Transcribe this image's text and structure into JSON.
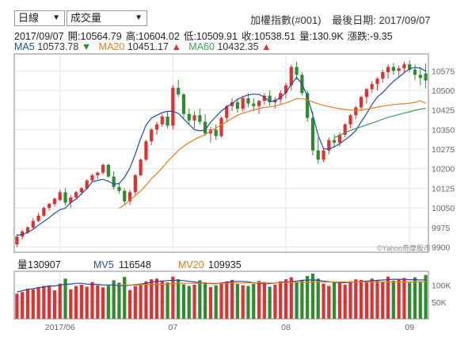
{
  "controls": {
    "period": {
      "value": "日線"
    },
    "indicator": {
      "value": "成交量"
    }
  },
  "header": {
    "title": "加權指數(#001)",
    "last_date_label": "最後日期:",
    "last_date": "2017/09/07"
  },
  "quote": {
    "date": "2017/09/07",
    "open_label": "開:",
    "open": "10564.79",
    "high_label": "高:",
    "high": "10604.02",
    "low_label": "低:",
    "low": "10509.91",
    "close_label": "收:",
    "close": "10538.51",
    "volume_label": "量:",
    "volume": "130.9K",
    "change_label": "漲跌:",
    "change": "-9.35"
  },
  "ma": {
    "ma5": {
      "label": "MA5",
      "value": "10573.78",
      "arrow": "▼",
      "color": "#1f4f9f",
      "arrow_color": "#2e8b2e"
    },
    "ma20": {
      "label": "MA20",
      "value": "10451.17",
      "arrow": "▲",
      "color": "#f07a18",
      "arrow_color": "#e03030"
    },
    "ma60": {
      "label": "MA60",
      "value": "10432.35",
      "arrow": "▲",
      "color": "#3aa055",
      "arrow_color": "#e03030"
    }
  },
  "watermark": "©Yahoo奇摩股市",
  "volume_panel": {
    "vol_label": "量",
    "vol_value": "130907",
    "mv5_label": "MV5",
    "mv5_value": "116548",
    "mv20_label": "MV20",
    "mv20_value": "109935",
    "mv5_color": "#1f4f9f",
    "mv20_color": "#f07a18"
  },
  "colors": {
    "up": "#e03030",
    "down": "#2e8b2e",
    "grid": "#e6e6e6",
    "axis_text": "#666666"
  },
  "chart_data": [
    {
      "type": "candlestick",
      "title": "加權指數(#001)",
      "y_ticks": [
        9900,
        9975,
        10050,
        10125,
        10200,
        10275,
        10350,
        10425,
        10500,
        10575
      ],
      "ylim": [
        9880,
        10640
      ],
      "x_labels": [
        {
          "label": "2017/06",
          "index": 8
        },
        {
          "label": "07",
          "index": 29
        },
        {
          "label": "08",
          "index": 50
        },
        {
          "label": "09",
          "index": 73
        }
      ],
      "series": [
        {
          "name": "MA5",
          "values": [
            9945,
            9948,
            9956,
            9968,
            9984,
            9998,
            10013,
            10029,
            10043,
            10049,
            10071,
            10083,
            10104,
            10124,
            10150,
            10155,
            10159,
            10152,
            10141,
            10143,
            10167,
            10203,
            10255,
            10316,
            10367,
            10394,
            10405,
            10415,
            10420,
            10420,
            10412,
            10391,
            10370,
            10350,
            10345,
            10348,
            10378,
            10400,
            10421,
            10437,
            10450,
            10466,
            10476,
            10483,
            10486,
            10485,
            10474,
            10457,
            10460,
            10474,
            10491,
            10524,
            10550,
            10525,
            10478,
            10405,
            10328,
            10277,
            10275,
            10284,
            10296,
            10311,
            10327,
            10346,
            10380,
            10411,
            10446,
            10475,
            10492,
            10514,
            10535,
            10551,
            10568,
            10583,
            10588,
            10586,
            10574
          ]
        },
        {
          "name": "MA20",
          "values": [
            null,
            null,
            null,
            null,
            null,
            null,
            null,
            null,
            null,
            null,
            null,
            null,
            null,
            null,
            null,
            null,
            null,
            null,
            null,
            10049,
            10062,
            10078,
            10097,
            10115,
            10137,
            10162,
            10181,
            10203,
            10228,
            10249,
            10270,
            10286,
            10300,
            10312,
            10322,
            10331,
            10344,
            10356,
            10368,
            10380,
            10393,
            10405,
            10413,
            10419,
            10425,
            10431,
            10435,
            10437,
            10440,
            10446,
            10452,
            10460,
            10469,
            10469,
            10464,
            10456,
            10449,
            10443,
            10438,
            10434,
            10430,
            10427,
            10425,
            10423,
            10425,
            10428,
            10432,
            10436,
            10440,
            10443,
            10446,
            10448,
            10449,
            10451,
            10455,
            10460,
            10451
          ]
        },
        {
          "name": "MA60",
          "values": [
            null,
            null,
            null,
            null,
            null,
            null,
            null,
            null,
            null,
            null,
            null,
            null,
            null,
            null,
            null,
            null,
            null,
            null,
            null,
            null,
            null,
            null,
            null,
            null,
            null,
            null,
            null,
            null,
            null,
            null,
            null,
            null,
            null,
            null,
            null,
            null,
            null,
            null,
            null,
            null,
            null,
            null,
            null,
            null,
            null,
            null,
            null,
            null,
            null,
            null,
            null,
            null,
            null,
            null,
            null,
            null,
            null,
            null,
            null,
            10318,
            10328,
            10338,
            10347,
            10354,
            10361,
            10368,
            10375,
            10382,
            10390,
            10397,
            10402,
            10408,
            10413,
            10418,
            10424,
            10428,
            10432
          ]
        }
      ],
      "candles": [
        [
          9910,
          9950,
          9900,
          9940
        ],
        [
          9940,
          9965,
          9930,
          9960
        ],
        [
          9955,
          9980,
          9950,
          9975
        ],
        [
          9975,
          10010,
          9968,
          10000
        ],
        [
          10000,
          10030,
          9995,
          10020
        ],
        [
          10020,
          10055,
          10015,
          10050
        ],
        [
          10050,
          10070,
          10040,
          10065
        ],
        [
          10065,
          10090,
          10055,
          10085
        ],
        [
          10080,
          10120,
          10075,
          10110
        ],
        [
          10110,
          10125,
          10060,
          10070
        ],
        [
          10070,
          10100,
          10050,
          10090
        ],
        [
          10090,
          10115,
          10085,
          10110
        ],
        [
          10110,
          10130,
          10100,
          10125
        ],
        [
          10125,
          10160,
          10120,
          10155
        ],
        [
          10155,
          10180,
          10150,
          10175
        ],
        [
          10175,
          10190,
          10160,
          10185
        ],
        [
          10185,
          10220,
          10178,
          10215
        ],
        [
          10215,
          10220,
          10165,
          10170
        ],
        [
          10170,
          10190,
          10120,
          10130
        ],
        [
          10130,
          10145,
          10105,
          10115
        ],
        [
          10115,
          10125,
          10060,
          10075
        ],
        [
          10075,
          10120,
          10060,
          10110
        ],
        [
          10110,
          10180,
          10100,
          10175
        ],
        [
          10175,
          10240,
          10170,
          10235
        ],
        [
          10235,
          10310,
          10230,
          10305
        ],
        [
          10305,
          10355,
          10290,
          10350
        ],
        [
          10350,
          10380,
          10330,
          10370
        ],
        [
          10370,
          10410,
          10360,
          10400
        ],
        [
          10400,
          10420,
          10355,
          10365
        ],
        [
          10365,
          10520,
          10350,
          10510
        ],
        [
          10510,
          10540,
          10475,
          10485
        ],
        [
          10485,
          10490,
          10395,
          10410
        ],
        [
          10410,
          10430,
          10370,
          10385
        ],
        [
          10385,
          10420,
          10355,
          10405
        ],
        [
          10405,
          10430,
          10370,
          10380
        ],
        [
          10380,
          10410,
          10325,
          10335
        ],
        [
          10335,
          10360,
          10300,
          10350
        ],
        [
          10350,
          10370,
          10310,
          10325
        ],
        [
          10325,
          10400,
          10320,
          10395
        ],
        [
          10395,
          10445,
          10380,
          10440
        ],
        [
          10440,
          10470,
          10420,
          10455
        ],
        [
          10455,
          10470,
          10415,
          10430
        ],
        [
          10430,
          10480,
          10420,
          10470
        ],
        [
          10470,
          10490,
          10435,
          10450
        ],
        [
          10450,
          10470,
          10420,
          10440
        ],
        [
          10440,
          10465,
          10410,
          10460
        ],
        [
          10460,
          10490,
          10445,
          10480
        ],
        [
          10480,
          10500,
          10440,
          10455
        ],
        [
          10455,
          10475,
          10430,
          10465
        ],
        [
          10465,
          10500,
          10450,
          10490
        ],
        [
          10490,
          10530,
          10470,
          10520
        ],
        [
          10520,
          10600,
          10500,
          10590
        ],
        [
          10590,
          10610,
          10540,
          10560
        ],
        [
          10560,
          10570,
          10480,
          10490
        ],
        [
          10490,
          10500,
          10380,
          10395
        ],
        [
          10395,
          10420,
          10250,
          10270
        ],
        [
          10270,
          10320,
          10220,
          10235
        ],
        [
          10235,
          10280,
          10225,
          10270
        ],
        [
          10270,
          10320,
          10255,
          10310
        ],
        [
          10310,
          10330,
          10280,
          10300
        ],
        [
          10300,
          10340,
          10285,
          10330
        ],
        [
          10330,
          10375,
          10320,
          10370
        ],
        [
          10370,
          10410,
          10355,
          10405
        ],
        [
          10405,
          10440,
          10390,
          10435
        ],
        [
          10435,
          10480,
          10420,
          10475
        ],
        [
          10475,
          10510,
          10450,
          10505
        ],
        [
          10505,
          10535,
          10490,
          10525
        ],
        [
          10525,
          10550,
          10500,
          10545
        ],
        [
          10545,
          10580,
          10530,
          10570
        ],
        [
          10570,
          10600,
          10545,
          10590
        ],
        [
          10590,
          10605,
          10560,
          10575
        ],
        [
          10575,
          10595,
          10550,
          10585
        ],
        [
          10585,
          10610,
          10565,
          10600
        ],
        [
          10600,
          10615,
          10570,
          10580
        ],
        [
          10580,
          10600,
          10540,
          10560
        ],
        [
          10560,
          10590,
          10520,
          10548
        ],
        [
          10564.79,
          10604.02,
          10509.91,
          10538.51
        ]
      ]
    },
    {
      "type": "bar",
      "title": "量",
      "y_ticks": [
        50000,
        100000
      ],
      "y_tick_labels": [
        "50K",
        "100K"
      ],
      "ylim": [
        0,
        142000
      ],
      "series": [
        {
          "name": "MV5",
          "values": [
            80000,
            84000,
            88000,
            90000,
            93000,
            95000,
            98000,
            98000,
            101000,
            103000,
            104000,
            106000,
            106000,
            104000,
            103000,
            103000,
            101000,
            101000,
            101000,
            99000,
            99000,
            100000,
            102000,
            104000,
            106000,
            109000,
            112000,
            113000,
            114000,
            115000,
            115000,
            114000,
            112000,
            110000,
            108000,
            106000,
            105000,
            105000,
            107000,
            109000,
            111000,
            112000,
            112000,
            110000,
            108000,
            106000,
            105000,
            105000,
            107000,
            109000,
            110000,
            111000,
            113000,
            115000,
            116000,
            116000,
            115000,
            113000,
            111000,
            109000,
            108000,
            108000,
            109000,
            110000,
            111000,
            113000,
            114000,
            115000,
            116000,
            117000,
            118000,
            118000,
            118000,
            117000,
            117000,
            116000,
            116548
          ]
        },
        {
          "name": "MV20",
          "values": [
            null,
            null,
            null,
            null,
            null,
            null,
            null,
            null,
            null,
            null,
            null,
            null,
            null,
            null,
            null,
            null,
            null,
            null,
            null,
            100000,
            101000,
            101000,
            101000,
            102000,
            102000,
            103000,
            103000,
            104000,
            104000,
            105000,
            106000,
            106000,
            106000,
            106000,
            106000,
            106000,
            106000,
            106000,
            106000,
            106000,
            107000,
            107000,
            107000,
            107000,
            108000,
            108000,
            107000,
            107000,
            107000,
            108000,
            108000,
            109000,
            109000,
            109000,
            109000,
            110000,
            110000,
            110000,
            110000,
            110000,
            110000,
            110000,
            110000,
            110000,
            110000,
            110000,
            110000,
            110000,
            110000,
            110000,
            110000,
            110000,
            110000,
            110000,
            110000,
            110000,
            109935
          ]
        }
      ],
      "volumes": [
        75000,
        80000,
        90000,
        88000,
        95000,
        98000,
        100000,
        85000,
        105000,
        120000,
        88000,
        98000,
        102000,
        96000,
        110000,
        100000,
        94000,
        99000,
        115000,
        108000,
        125000,
        86000,
        98000,
        104000,
        112000,
        118000,
        120000,
        114000,
        109000,
        126000,
        118000,
        103000,
        98000,
        102000,
        115000,
        109000,
        95000,
        100000,
        108000,
        112000,
        116000,
        104000,
        100000,
        98000,
        105000,
        113000,
        110000,
        96000,
        102000,
        112000,
        118000,
        124000,
        108000,
        115000,
        128000,
        135000,
        120000,
        105000,
        98000,
        110000,
        108000,
        102000,
        112000,
        118000,
        116000,
        110000,
        120000,
        115000,
        110000,
        126000,
        114000,
        118000,
        122000,
        108000,
        124000,
        112000,
        130907
      ]
    }
  ]
}
